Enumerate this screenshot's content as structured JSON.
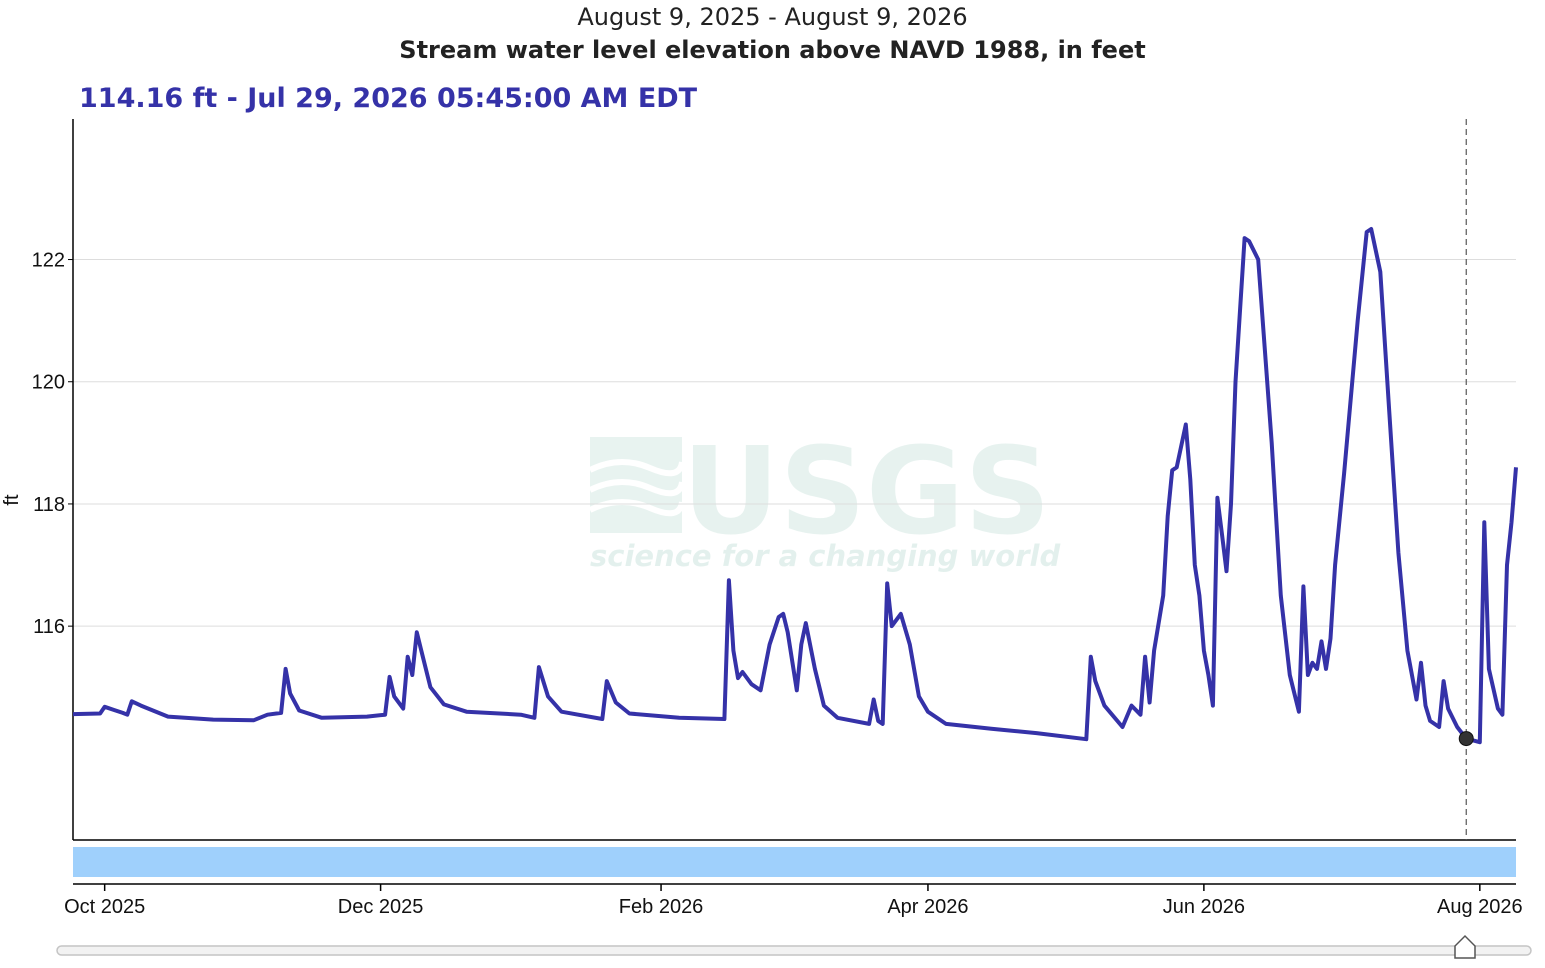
{
  "header": {
    "date_range": "August 9, 2025 - August 9, 2026",
    "title": "Stream water level elevation above NAVD 1988, in feet"
  },
  "readout": {
    "text": "114.16 ft - Jul 29, 2026 05:45:00 AM EDT",
    "value": 114.16,
    "date": "2026-07-29"
  },
  "watermark": {
    "logo": "USGS",
    "tagline": "science for a changing world"
  },
  "colors": {
    "series": "#3532a8",
    "brush": "#9fd0fc",
    "grid": "#dddddd",
    "watermark": "#d8ebe6"
  },
  "chart_data": {
    "type": "line",
    "ylabel": "ft",
    "ylim": [
      112.5,
      124.3
    ],
    "yticks": [
      116,
      118,
      120,
      122
    ],
    "xlim": [
      "2025-09-24",
      "2026-08-09"
    ],
    "xticks": [
      {
        "date": "2025-10-01",
        "label": "Oct 2025"
      },
      {
        "date": "2025-12-01",
        "label": "Dec 2025"
      },
      {
        "date": "2026-02-01",
        "label": "Feb 2026"
      },
      {
        "date": "2026-04-01",
        "label": "Apr 2026"
      },
      {
        "date": "2026-06-01",
        "label": "Jun 2026"
      },
      {
        "date": "2026-08-01",
        "label": "Aug 2026"
      }
    ],
    "grid": true,
    "cursor_date": "2026-07-29",
    "series": [
      {
        "points": [
          [
            "2025-09-24",
            114.56
          ],
          [
            "2025-09-30",
            114.57
          ],
          [
            "2025-10-01",
            114.68
          ],
          [
            "2025-10-03",
            114.63
          ],
          [
            "2025-10-05",
            114.58
          ],
          [
            "2025-10-06",
            114.55
          ],
          [
            "2025-10-07",
            114.77
          ],
          [
            "2025-10-09",
            114.7
          ],
          [
            "2025-10-15",
            114.52
          ],
          [
            "2025-10-25",
            114.47
          ],
          [
            "2025-11-03",
            114.46
          ],
          [
            "2025-11-06",
            114.55
          ],
          [
            "2025-11-09",
            114.58
          ],
          [
            "2025-11-10",
            115.3
          ],
          [
            "2025-11-11",
            114.9
          ],
          [
            "2025-11-13",
            114.62
          ],
          [
            "2025-11-18",
            114.5
          ],
          [
            "2025-11-28",
            114.52
          ],
          [
            "2025-12-02",
            114.55
          ],
          [
            "2025-12-03",
            115.17
          ],
          [
            "2025-12-04",
            114.85
          ],
          [
            "2025-12-06",
            114.65
          ],
          [
            "2025-12-07",
            115.5
          ],
          [
            "2025-12-08",
            115.2
          ],
          [
            "2025-12-09",
            115.9
          ],
          [
            "2025-12-10",
            115.6
          ],
          [
            "2025-12-12",
            115.0
          ],
          [
            "2025-12-15",
            114.72
          ],
          [
            "2025-12-20",
            114.6
          ],
          [
            "2026-01-01",
            114.55
          ],
          [
            "2026-01-04",
            114.5
          ],
          [
            "2026-01-05",
            115.33
          ],
          [
            "2026-01-07",
            114.85
          ],
          [
            "2026-01-10",
            114.6
          ],
          [
            "2026-01-19",
            114.48
          ],
          [
            "2026-01-20",
            115.1
          ],
          [
            "2026-01-22",
            114.75
          ],
          [
            "2026-01-25",
            114.57
          ],
          [
            "2026-02-05",
            114.5
          ],
          [
            "2026-02-15",
            114.48
          ],
          [
            "2026-02-16",
            116.75
          ],
          [
            "2026-02-17",
            115.6
          ],
          [
            "2026-02-18",
            115.15
          ],
          [
            "2026-02-19",
            115.25
          ],
          [
            "2026-02-21",
            115.05
          ],
          [
            "2026-02-23",
            114.95
          ],
          [
            "2026-02-25",
            115.7
          ],
          [
            "2026-02-27",
            116.15
          ],
          [
            "2026-02-28",
            116.2
          ],
          [
            "2026-03-01",
            115.9
          ],
          [
            "2026-03-03",
            114.95
          ],
          [
            "2026-03-04",
            115.7
          ],
          [
            "2026-03-05",
            116.05
          ],
          [
            "2026-03-07",
            115.3
          ],
          [
            "2026-03-09",
            114.7
          ],
          [
            "2026-03-12",
            114.5
          ],
          [
            "2026-03-19",
            114.4
          ],
          [
            "2026-03-20",
            114.8
          ],
          [
            "2026-03-21",
            114.45
          ],
          [
            "2026-03-22",
            114.4
          ],
          [
            "2026-03-23",
            116.7
          ],
          [
            "2026-03-24",
            116.0
          ],
          [
            "2026-03-26",
            116.2
          ],
          [
            "2026-03-28",
            115.7
          ],
          [
            "2026-03-30",
            114.85
          ],
          [
            "2026-04-01",
            114.6
          ],
          [
            "2026-04-05",
            114.4
          ],
          [
            "2026-04-15",
            114.32
          ],
          [
            "2026-04-25",
            114.25
          ],
          [
            "2026-05-06",
            114.15
          ],
          [
            "2026-05-07",
            115.5
          ],
          [
            "2026-05-08",
            115.1
          ],
          [
            "2026-05-10",
            114.7
          ],
          [
            "2026-05-14",
            114.35
          ],
          [
            "2026-05-16",
            114.7
          ],
          [
            "2026-05-18",
            114.55
          ],
          [
            "2026-05-19",
            115.5
          ],
          [
            "2026-05-20",
            114.75
          ],
          [
            "2026-05-21",
            115.6
          ],
          [
            "2026-05-23",
            116.5
          ],
          [
            "2026-05-24",
            117.8
          ],
          [
            "2026-05-25",
            118.55
          ],
          [
            "2026-05-26",
            118.6
          ],
          [
            "2026-05-28",
            119.3
          ],
          [
            "2026-05-29",
            118.4
          ],
          [
            "2026-05-30",
            117.0
          ],
          [
            "2026-05-31",
            116.5
          ],
          [
            "2026-06-01",
            115.6
          ],
          [
            "2026-06-02",
            115.2
          ],
          [
            "2026-06-03",
            114.7
          ],
          [
            "2026-06-04",
            118.1
          ],
          [
            "2026-06-05",
            117.5
          ],
          [
            "2026-06-06",
            116.9
          ],
          [
            "2026-06-07",
            118.0
          ],
          [
            "2026-06-08",
            120.0
          ],
          [
            "2026-06-10",
            122.35
          ],
          [
            "2026-06-11",
            122.3
          ],
          [
            "2026-06-13",
            122.0
          ],
          [
            "2026-06-14",
            121.0
          ],
          [
            "2026-06-16",
            119.0
          ],
          [
            "2026-06-18",
            116.5
          ],
          [
            "2026-06-20",
            115.2
          ],
          [
            "2026-06-22",
            114.6
          ],
          [
            "2026-06-23",
            116.65
          ],
          [
            "2026-06-24",
            115.2
          ],
          [
            "2026-06-25",
            115.4
          ],
          [
            "2026-06-26",
            115.3
          ],
          [
            "2026-06-27",
            115.75
          ],
          [
            "2026-06-28",
            115.3
          ],
          [
            "2026-06-29",
            115.8
          ],
          [
            "2026-06-30",
            117.0
          ],
          [
            "2026-07-02",
            118.5
          ],
          [
            "2026-07-05",
            121.0
          ],
          [
            "2026-07-07",
            122.45
          ],
          [
            "2026-07-08",
            122.5
          ],
          [
            "2026-07-10",
            121.8
          ],
          [
            "2026-07-12",
            119.5
          ],
          [
            "2026-07-14",
            117.2
          ],
          [
            "2026-07-16",
            115.6
          ],
          [
            "2026-07-18",
            114.8
          ],
          [
            "2026-07-19",
            115.4
          ],
          [
            "2026-07-20",
            114.7
          ],
          [
            "2026-07-21",
            114.45
          ],
          [
            "2026-07-23",
            114.35
          ],
          [
            "2026-07-24",
            115.1
          ],
          [
            "2026-07-25",
            114.65
          ],
          [
            "2026-07-27",
            114.35
          ],
          [
            "2026-07-29",
            114.16
          ],
          [
            "2026-08-01",
            114.1
          ],
          [
            "2026-08-02",
            117.7
          ],
          [
            "2026-08-03",
            115.3
          ],
          [
            "2026-08-05",
            114.65
          ],
          [
            "2026-08-06",
            114.55
          ],
          [
            "2026-08-07",
            117.0
          ],
          [
            "2026-08-08",
            117.7
          ],
          [
            "2026-08-09",
            118.6
          ]
        ]
      }
    ]
  }
}
